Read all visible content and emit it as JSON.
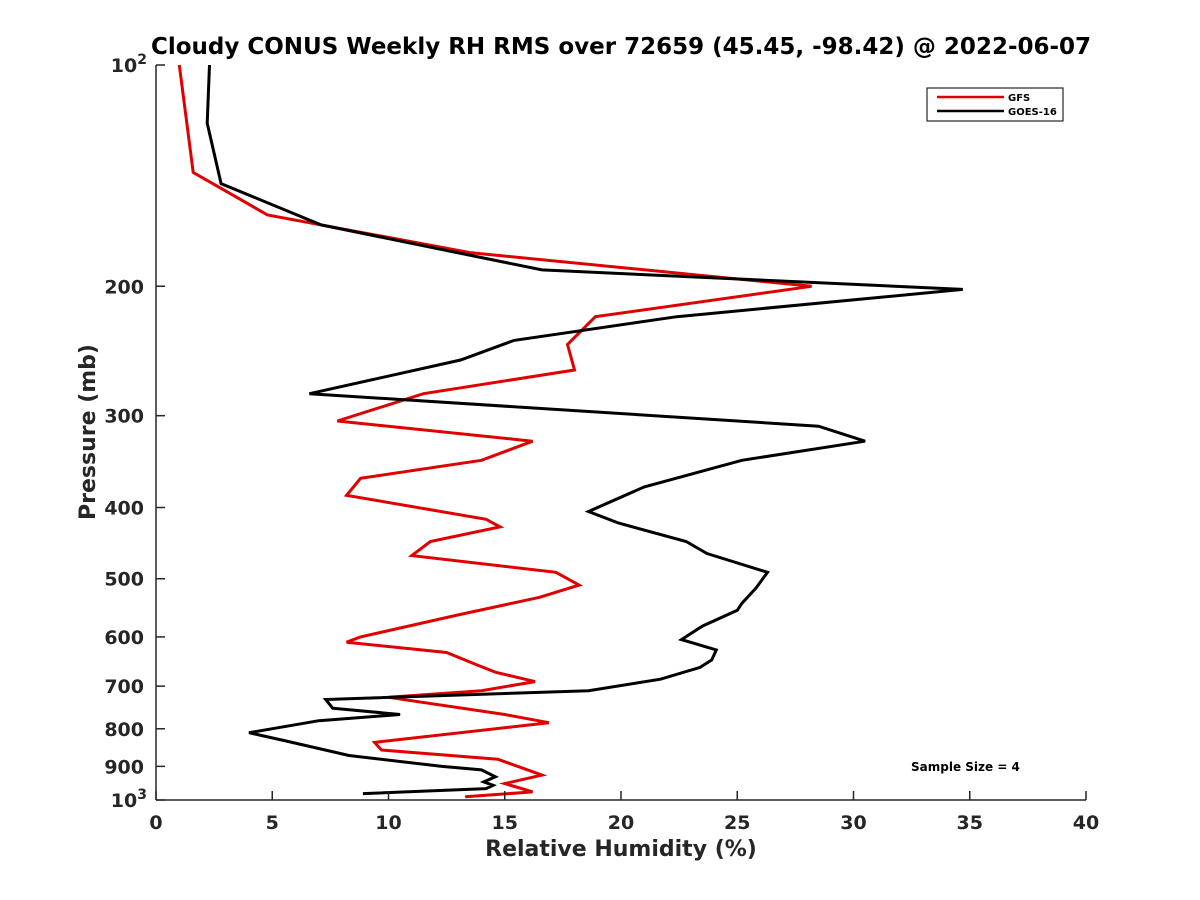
{
  "chart_data": {
    "type": "line",
    "title": "Cloudy CONUS Weekly RH RMS over 72659 (45.45, -98.42) @ 2022-06-07",
    "xlabel": "Relative Humidity (%)",
    "ylabel": "Pressure (mb)",
    "xlim": [
      0,
      40
    ],
    "ylim": [
      100,
      1000
    ],
    "y_scale": "log",
    "y_reversed": true,
    "grid": false,
    "x_ticks": [
      0,
      5,
      10,
      15,
      20,
      25,
      30,
      35,
      40
    ],
    "y_ticks": [
      {
        "value": 100,
        "base": "10",
        "exp": "2"
      },
      {
        "value": 200,
        "label": "200"
      },
      {
        "value": 300,
        "label": "300"
      },
      {
        "value": 400,
        "label": "400"
      },
      {
        "value": 500,
        "label": "500"
      },
      {
        "value": 600,
        "label": "600"
      },
      {
        "value": 700,
        "label": "700"
      },
      {
        "value": 800,
        "label": "800"
      },
      {
        "value": 900,
        "label": "900"
      },
      {
        "value": 1000,
        "base": "10",
        "exp": "3"
      }
    ],
    "legend_position": "top-right",
    "annotation": "Sample Size = 4",
    "series": [
      {
        "name": "GFS",
        "color": "#e00000",
        "points": [
          [
            1.0,
            100
          ],
          [
            1.6,
            140
          ],
          [
            4.8,
            160
          ],
          [
            13.5,
            180
          ],
          [
            28.2,
            200
          ],
          [
            18.9,
            220
          ],
          [
            17.7,
            240
          ],
          [
            18.0,
            260
          ],
          [
            11.5,
            280
          ],
          [
            7.8,
            305
          ],
          [
            16.2,
            325
          ],
          [
            14.0,
            345
          ],
          [
            8.8,
            365
          ],
          [
            8.2,
            385
          ],
          [
            14.2,
            415
          ],
          [
            14.8,
            425
          ],
          [
            11.8,
            445
          ],
          [
            11.0,
            465
          ],
          [
            17.2,
            490
          ],
          [
            18.2,
            510
          ],
          [
            16.5,
            530
          ],
          [
            13.0,
            560
          ],
          [
            8.8,
            600
          ],
          [
            8.2,
            610
          ],
          [
            12.5,
            630
          ],
          [
            13.8,
            655
          ],
          [
            14.6,
            670
          ],
          [
            16.3,
            690
          ],
          [
            14.0,
            710
          ],
          [
            10.0,
            725
          ],
          [
            15.0,
            765
          ],
          [
            16.9,
            785
          ],
          [
            9.4,
            835
          ],
          [
            9.7,
            855
          ],
          [
            14.7,
            880
          ],
          [
            16.6,
            925
          ],
          [
            15.0,
            950
          ],
          [
            15.5,
            960
          ],
          [
            16.2,
            975
          ],
          [
            13.3,
            990
          ]
        ]
      },
      {
        "name": "GOES-16",
        "color": "#000000",
        "points": [
          [
            2.3,
            100
          ],
          [
            2.2,
            120
          ],
          [
            2.8,
            145
          ],
          [
            7.1,
            165
          ],
          [
            16.6,
            190
          ],
          [
            34.7,
            202
          ],
          [
            22.4,
            220
          ],
          [
            15.4,
            237
          ],
          [
            13.1,
            252
          ],
          [
            6.6,
            280
          ],
          [
            28.5,
            310
          ],
          [
            30.5,
            325
          ],
          [
            25.2,
            345
          ],
          [
            21.0,
            375
          ],
          [
            18.6,
            405
          ],
          [
            19.9,
            420
          ],
          [
            22.8,
            445
          ],
          [
            23.7,
            462
          ],
          [
            26.3,
            490
          ],
          [
            25.8,
            515
          ],
          [
            25.2,
            540
          ],
          [
            25.0,
            552
          ],
          [
            23.5,
            580
          ],
          [
            22.6,
            605
          ],
          [
            24.1,
            625
          ],
          [
            23.9,
            645
          ],
          [
            23.4,
            660
          ],
          [
            21.7,
            685
          ],
          [
            18.6,
            710
          ],
          [
            7.3,
            730
          ],
          [
            7.6,
            750
          ],
          [
            10.5,
            765
          ],
          [
            7.0,
            780
          ],
          [
            4.0,
            810
          ],
          [
            5.5,
            830
          ],
          [
            8.3,
            870
          ],
          [
            12.3,
            900
          ],
          [
            14.0,
            910
          ],
          [
            14.6,
            930
          ],
          [
            14.1,
            945
          ],
          [
            14.5,
            955
          ],
          [
            14.2,
            965
          ],
          [
            8.9,
            980
          ]
        ]
      }
    ]
  }
}
